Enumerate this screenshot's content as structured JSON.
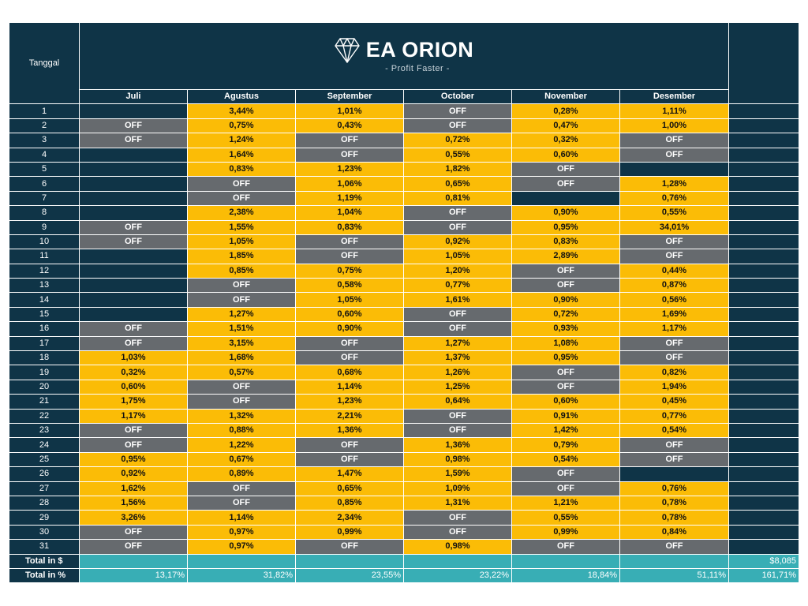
{
  "header": {
    "date_label": "Tanggal",
    "brand": "EA ORION",
    "tagline": "- Profit Faster -"
  },
  "months": [
    "Juli",
    "Agustus",
    "September",
    "October",
    "November",
    "Desember"
  ],
  "days": [
    "1",
    "2",
    "3",
    "4",
    "5",
    "6",
    "7",
    "8",
    "9",
    "10",
    "11",
    "12",
    "13",
    "14",
    "15",
    "16",
    "17",
    "18",
    "19",
    "20",
    "21",
    "22",
    "23",
    "24",
    "25",
    "26",
    "27",
    "28",
    "29",
    "30",
    "31"
  ],
  "rows": [
    [
      "",
      "3,44%",
      "1,01%",
      "OFF",
      "0,28%",
      "1,11%"
    ],
    [
      "OFF",
      "0,75%",
      "0,43%",
      "OFF",
      "0,47%",
      "1,00%"
    ],
    [
      "OFF",
      "1,24%",
      "OFF",
      "0,72%",
      "0,32%",
      "OFF"
    ],
    [
      "",
      "1,64%",
      "OFF",
      "0,55%",
      "0,60%",
      "OFF"
    ],
    [
      "",
      "0,83%",
      "1,23%",
      "1,82%",
      "OFF",
      ""
    ],
    [
      "",
      "OFF",
      "1,06%",
      "0,65%",
      "OFF",
      "1,28%"
    ],
    [
      "",
      "OFF",
      "1,19%",
      "0,81%",
      "",
      "0,76%"
    ],
    [
      "",
      "2,38%",
      "1,04%",
      "OFF",
      "0,90%",
      "0,55%"
    ],
    [
      "OFF",
      "1,55%",
      "0,83%",
      "OFF",
      "0,95%",
      "34,01%"
    ],
    [
      "OFF",
      "1,05%",
      "OFF",
      "0,92%",
      "0,83%",
      "OFF"
    ],
    [
      "",
      "1,85%",
      "OFF",
      "1,05%",
      "2,89%",
      "OFF"
    ],
    [
      "",
      "0,85%",
      "0,75%",
      "1,20%",
      "OFF",
      "0,44%"
    ],
    [
      "",
      "OFF",
      "0,58%",
      "0,77%",
      "OFF",
      "0,87%"
    ],
    [
      "",
      "OFF",
      "1,05%",
      "1,61%",
      "0,90%",
      "0,56%"
    ],
    [
      "",
      "1,27%",
      "0,60%",
      "OFF",
      "0,72%",
      "1,69%"
    ],
    [
      "OFF",
      "1,51%",
      "0,90%",
      "OFF",
      "0,93%",
      "1,17%"
    ],
    [
      "OFF",
      "3,15%",
      "OFF",
      "1,27%",
      "1,08%",
      "OFF"
    ],
    [
      "1,03%",
      "1,68%",
      "OFF",
      "1,37%",
      "0,95%",
      "OFF"
    ],
    [
      "0,32%",
      "0,57%",
      "0,68%",
      "1,26%",
      "OFF",
      "0,82%"
    ],
    [
      "0,60%",
      "OFF",
      "1,14%",
      "1,25%",
      "OFF",
      "1,94%"
    ],
    [
      "1,75%",
      "OFF",
      "1,23%",
      "0,64%",
      "0,60%",
      "0,45%"
    ],
    [
      "1,17%",
      "1,32%",
      "2,21%",
      "OFF",
      "0,91%",
      "0,77%"
    ],
    [
      "OFF",
      "0,88%",
      "1,36%",
      "OFF",
      "1,42%",
      "0,54%"
    ],
    [
      "OFF",
      "1,22%",
      "OFF",
      "1,36%",
      "0,79%",
      "OFF"
    ],
    [
      "0,95%",
      "0,67%",
      "OFF",
      "0,98%",
      "0,54%",
      "OFF"
    ],
    [
      "0,92%",
      "0,89%",
      "1,47%",
      "1,59%",
      "OFF",
      ""
    ],
    [
      "1,62%",
      "OFF",
      "0,65%",
      "1,09%",
      "OFF",
      "0,76%"
    ],
    [
      "1,56%",
      "OFF",
      "0,85%",
      "1,31%",
      "1,21%",
      "0,78%"
    ],
    [
      "3,26%",
      "1,14%",
      "2,34%",
      "OFF",
      "0,55%",
      "0,78%"
    ],
    [
      "OFF",
      "0,97%",
      "0,99%",
      "OFF",
      "0,99%",
      "0,84%"
    ],
    [
      "OFF",
      "0,97%",
      "OFF",
      "0,98%",
      "OFF",
      "OFF"
    ]
  ],
  "totals": {
    "dollar_label": "Total in $",
    "dollar_values": [
      "",
      "",
      "",
      "",
      "",
      ""
    ],
    "dollar_grand": "$8,085",
    "percent_label": "Total in %",
    "percent_values": [
      "13,17%",
      "31,82%",
      "23,55%",
      "23,22%",
      "18,84%",
      "51,11%"
    ],
    "percent_grand": "161,71%"
  },
  "colors": {
    "navy": "#0f3447",
    "profit": "#fbbc06",
    "off": "#666a6e",
    "total": "#38aeb5"
  },
  "icons": {
    "logo": "diamond-icon"
  }
}
